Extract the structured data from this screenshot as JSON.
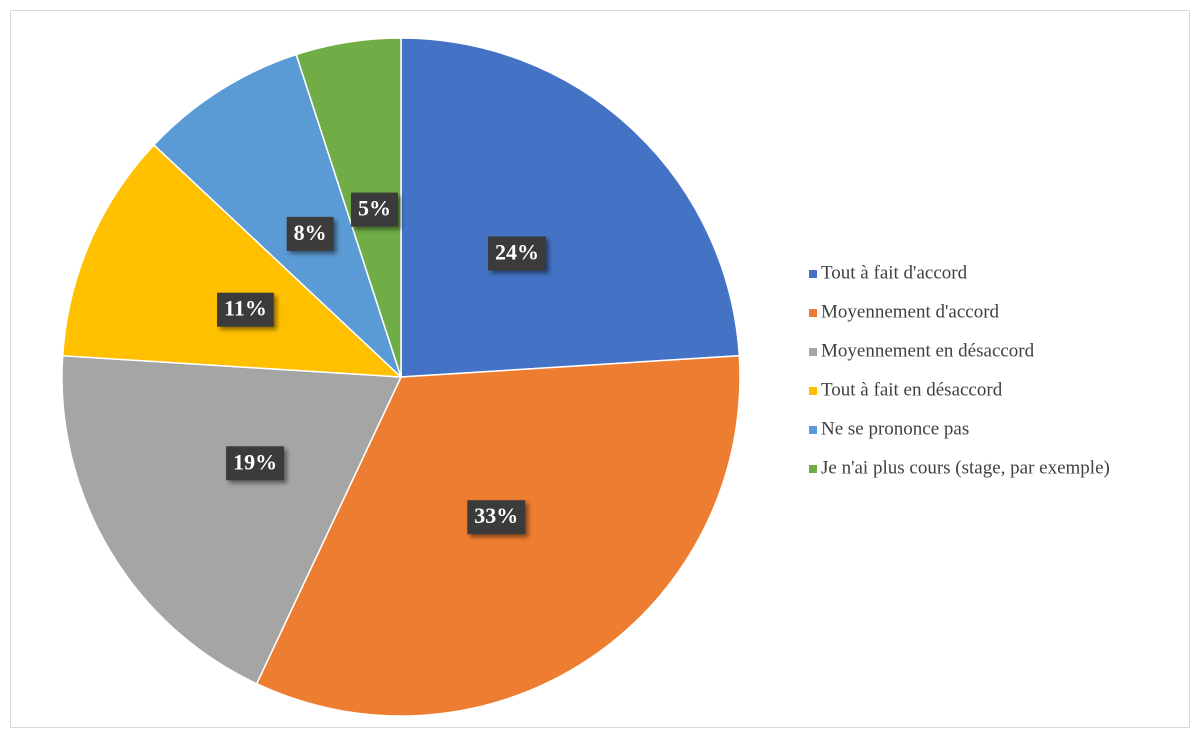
{
  "chart_data": {
    "type": "pie",
    "categories": [
      "Tout à fait d'accord",
      "Moyennement d'accord",
      "Moyennement en désaccord",
      "Tout à fait en désaccord",
      "Ne se prononce pas",
      "Je n'ai plus cours (stage, par exemple)"
    ],
    "values": [
      24,
      33,
      19,
      11,
      8,
      5
    ],
    "value_labels": [
      "24%",
      "33%",
      "19%",
      "11%",
      "8%",
      "5%"
    ],
    "colors": [
      "#4472c4",
      "#ed7d31",
      "#a5a5a5",
      "#ffc000",
      "#5b9bd5",
      "#70ad47"
    ],
    "legend": "right"
  }
}
